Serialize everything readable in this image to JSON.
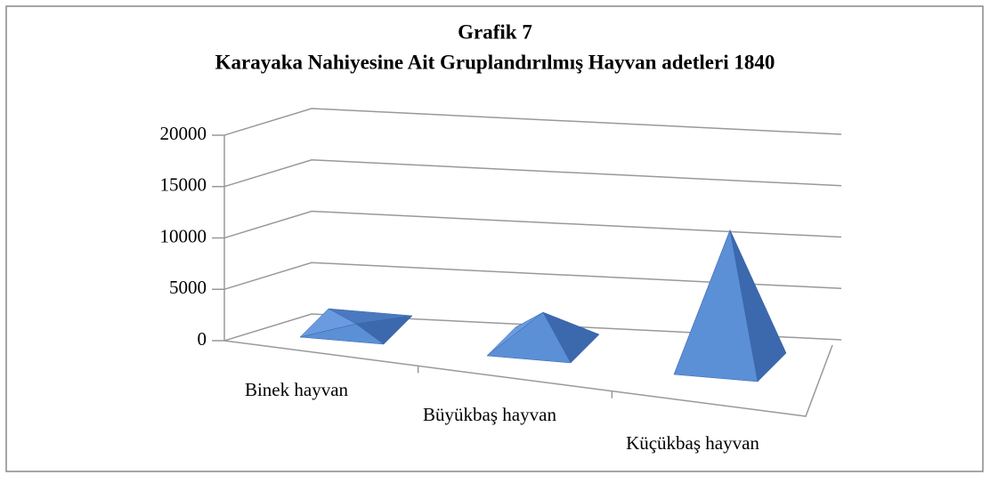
{
  "chart_data": {
    "type": "pyramid3d",
    "title": "Grafik 7",
    "subtitle": "Karayaka Nahiyesine Ait Gruplandırılmış Hayvan adetleri 1840",
    "categories": [
      "Binek hayvan",
      "Büyükbaş hayvan",
      "Küçükbaş hayvan"
    ],
    "values": [
      300,
      3800,
      15500
    ],
    "color": "#5b8fd6",
    "ylim": [
      0,
      20000
    ],
    "yticks": [
      0,
      5000,
      10000,
      15000,
      20000
    ],
    "grid": true
  }
}
